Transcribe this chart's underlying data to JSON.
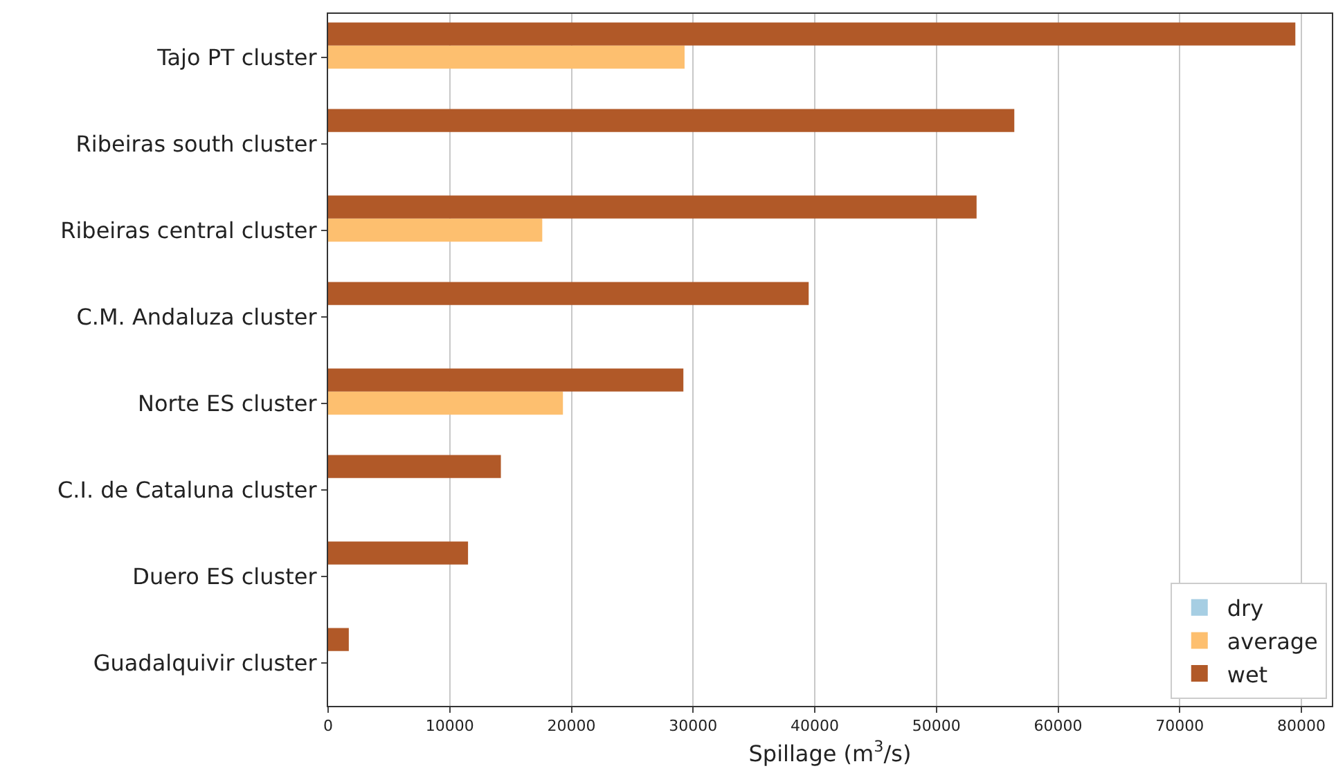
{
  "chart_data": {
    "type": "bar",
    "orientation": "horizontal",
    "xlabel": "Spillage (m$^{3}$/s)",
    "categories": [
      "Tajo PT cluster",
      "Ribeiras south cluster",
      "Ribeiras central cluster",
      "C.M. Andaluza cluster",
      "Norte ES cluster",
      "C.I. de Cataluna cluster",
      "Duero ES cluster",
      "Guadalquivir cluster"
    ],
    "series": [
      {
        "name": "dry",
        "color": "#a6cee3",
        "values": [
          0,
          0,
          0,
          0,
          0,
          0,
          0,
          0
        ]
      },
      {
        "name": "average",
        "color": "#fdbf6f",
        "values": [
          29300,
          0,
          17600,
          0,
          19300,
          0,
          0,
          0
        ]
      },
      {
        "name": "wet",
        "color": "#b15928",
        "values": [
          79500,
          56400,
          53300,
          39500,
          29200,
          14200,
          11500,
          1700
        ]
      }
    ],
    "xlim": [
      0,
      82500
    ],
    "xticks": [
      0,
      10000,
      20000,
      30000,
      40000,
      50000,
      60000,
      70000,
      80000
    ],
    "grid": "x",
    "legend": "bottom right"
  }
}
